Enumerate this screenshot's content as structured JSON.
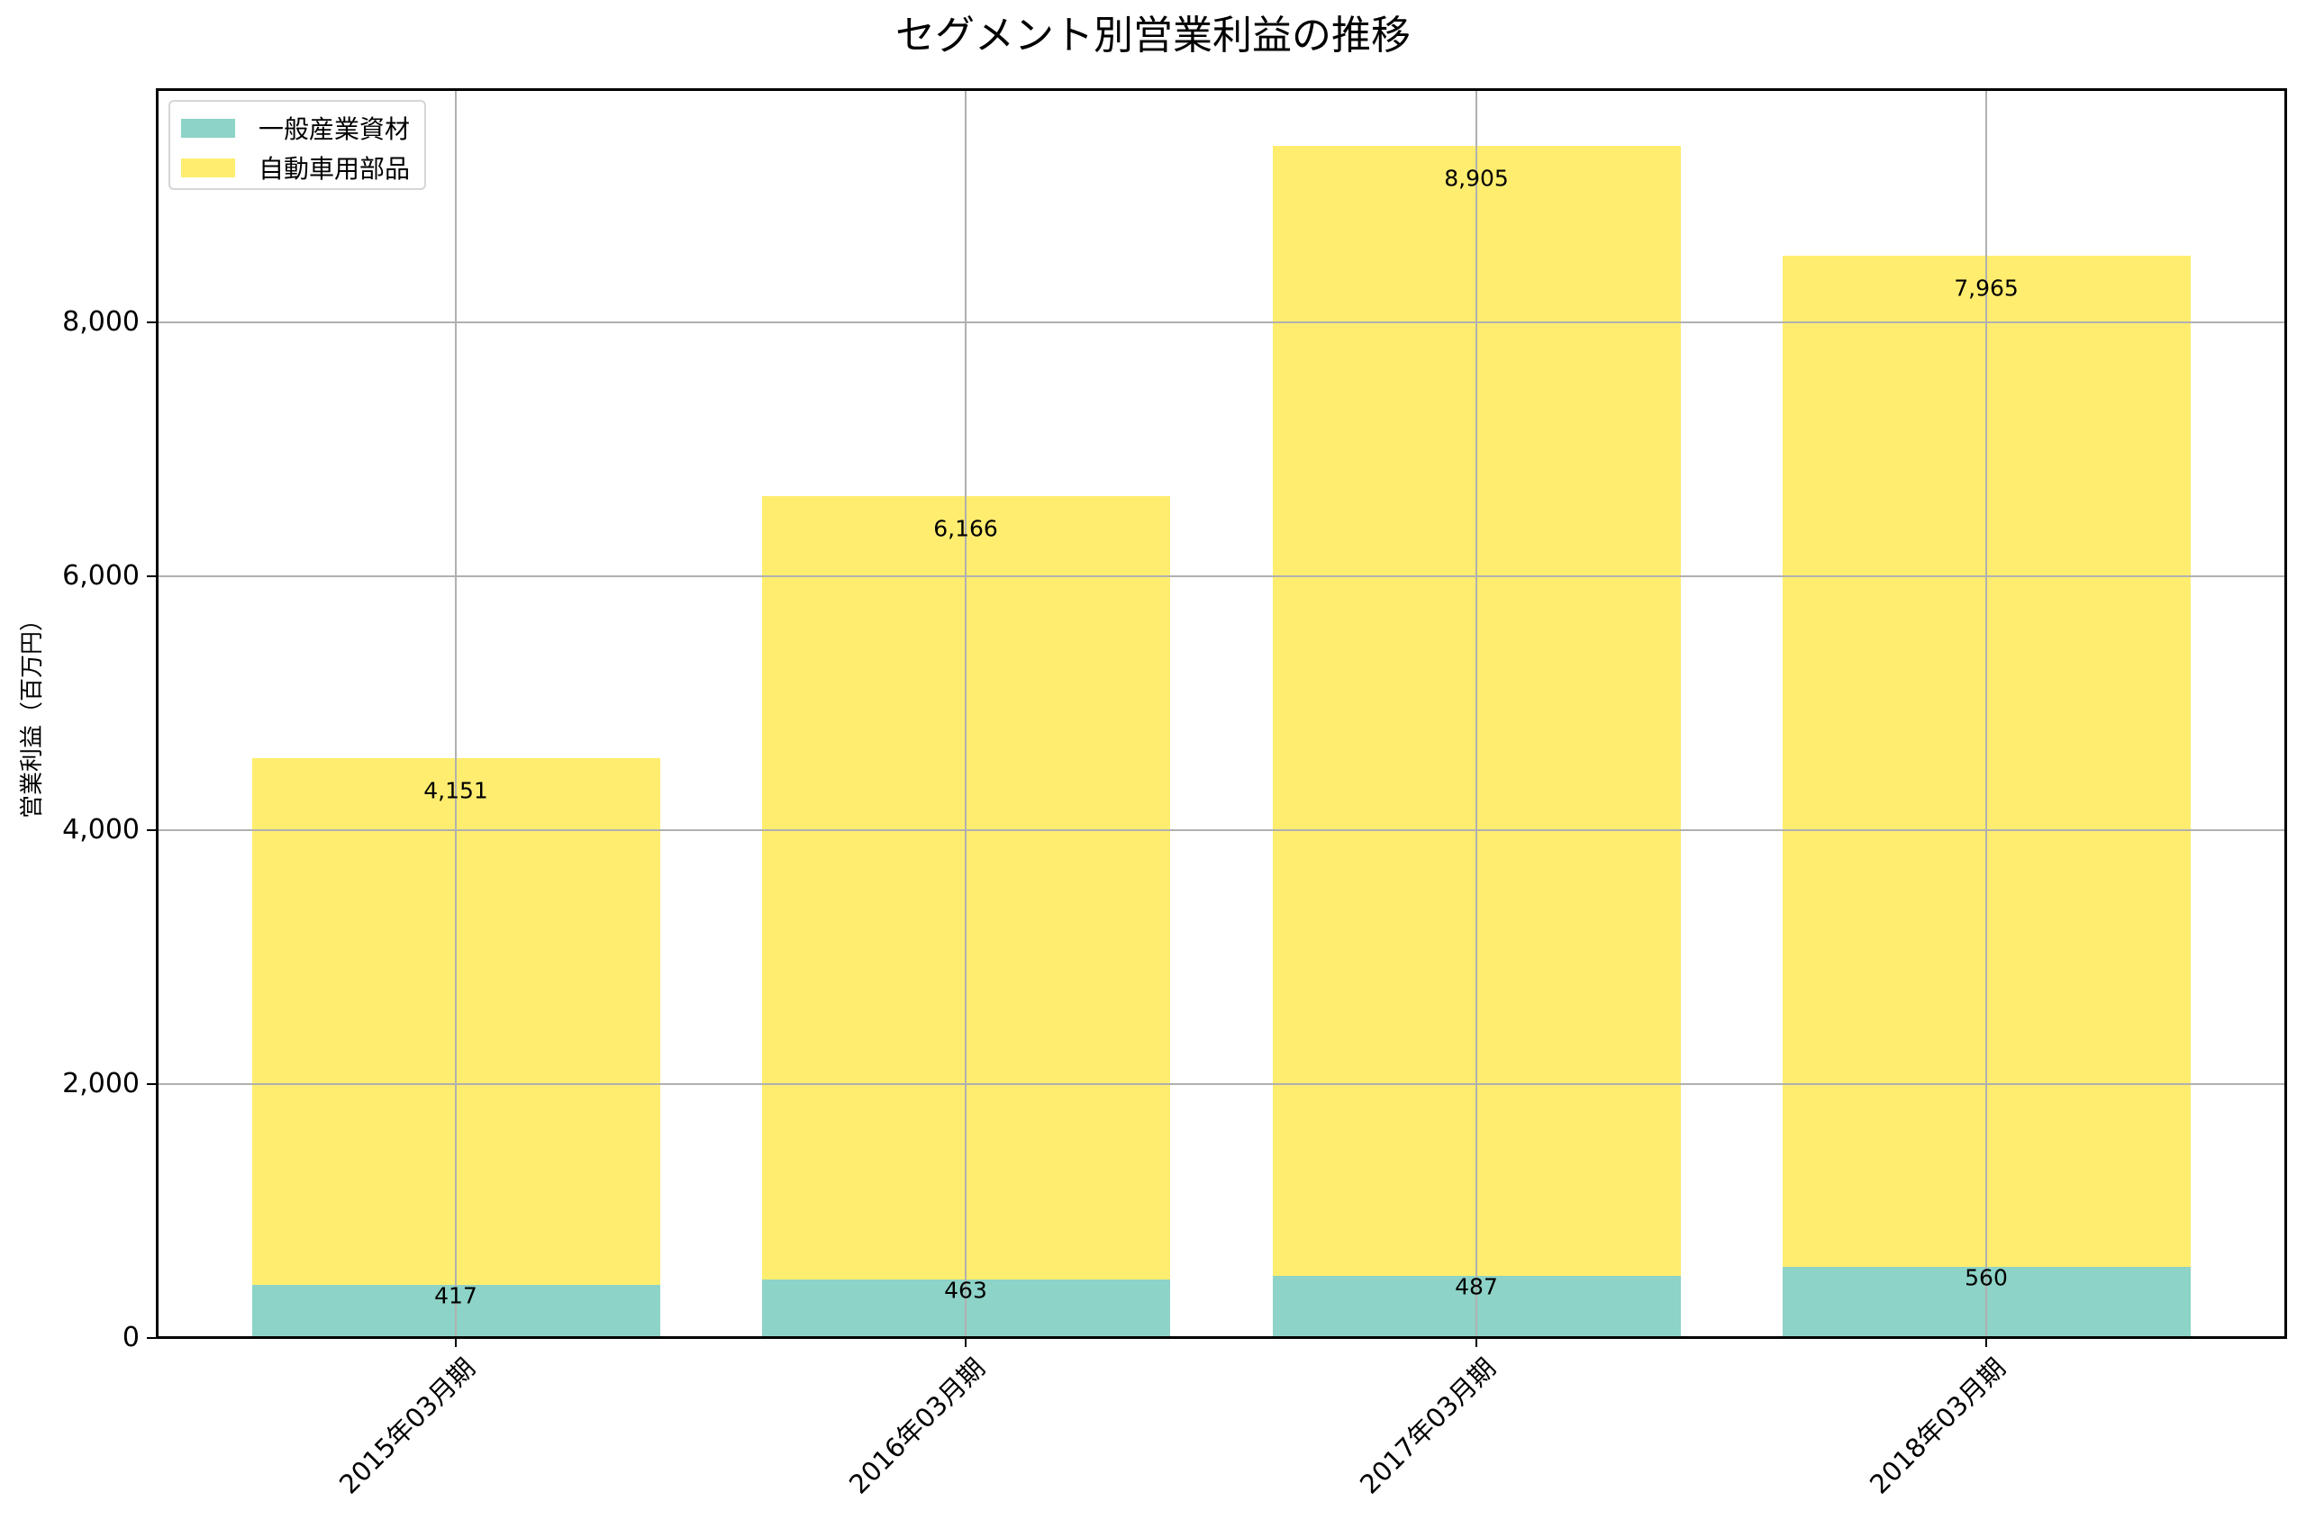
{
  "title": "セグメント別営業利益の推移",
  "ylabel": "営業利益（百万円）",
  "legend": [
    {
      "label": "一般産業資材",
      "color": "#8dd3c7"
    },
    {
      "label": "自動車用部品",
      "color": "#ffed6f"
    }
  ],
  "yticks": [
    "0",
    "2,000",
    "4,000",
    "6,000",
    "8,000"
  ],
  "xticks": [
    "2015年03月期",
    "2016年03月期",
    "2017年03月期",
    "2018年03月期"
  ],
  "bars": [
    {
      "category": "2015年03月期",
      "general_label": "417",
      "auto_label": "4,151"
    },
    {
      "category": "2016年03月期",
      "general_label": "463",
      "auto_label": "6,166"
    },
    {
      "category": "2017年03月期",
      "general_label": "487",
      "auto_label": "8,905"
    },
    {
      "category": "2018年03月期",
      "general_label": "560",
      "auto_label": "7,965"
    }
  ],
  "colors": {
    "general": "#8dd3c7",
    "auto": "#ffed6f",
    "grid": "#b0b0b0",
    "spine": "#000000"
  },
  "chart_data": {
    "type": "bar",
    "stacked": true,
    "title": "セグメント別営業利益の推移",
    "xlabel": "",
    "ylabel": "営業利益（百万円）",
    "categories": [
      "2015年03月期",
      "2016年03月期",
      "2017年03月期",
      "2018年03月期"
    ],
    "series": [
      {
        "name": "一般産業資材",
        "values": [
          417,
          463,
          487,
          560
        ],
        "color": "#8dd3c7"
      },
      {
        "name": "自動車用部品",
        "values": [
          4151,
          6166,
          8905,
          7965
        ],
        "color": "#ffed6f"
      }
    ],
    "ylim": [
      0,
      9850
    ],
    "yticks": [
      0,
      2000,
      4000,
      6000,
      8000
    ],
    "grid": true,
    "legend_position": "upper left",
    "xtick_rotation": 45
  }
}
